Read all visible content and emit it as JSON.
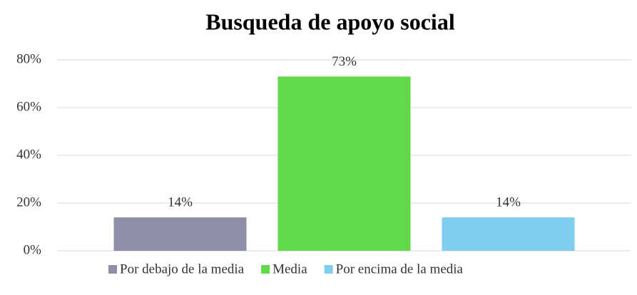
{
  "chart_data": {
    "type": "bar",
    "title": "Busqueda de apoyo social",
    "categories": [
      null
    ],
    "series": [
      {
        "name": "Por debajo de la media",
        "color": "#8e8ea8",
        "values": [
          14
        ],
        "value_labels": [
          "14%"
        ]
      },
      {
        "name": "Media",
        "color": "#62d94a",
        "values": [
          73
        ],
        "value_labels": [
          "73%"
        ]
      },
      {
        "name": "Por encima de la media",
        "color": "#7fcdef",
        "values": [
          14
        ],
        "value_labels": [
          "14%"
        ]
      }
    ],
    "ylim": [
      0,
      80
    ],
    "yticks": [
      {
        "value": 0,
        "label": "0%"
      },
      {
        "value": 20,
        "label": "20%"
      },
      {
        "value": 40,
        "label": "40%"
      },
      {
        "value": 60,
        "label": "60%"
      },
      {
        "value": 80,
        "label": "80%"
      }
    ],
    "grid": true,
    "legend": "bottom"
  }
}
